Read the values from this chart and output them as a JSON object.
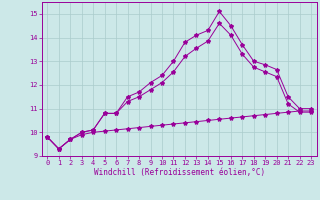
{
  "xlabel": "Windchill (Refroidissement éolien,°C)",
  "x": [
    0,
    1,
    2,
    3,
    4,
    5,
    6,
    7,
    8,
    9,
    10,
    11,
    12,
    13,
    14,
    15,
    16,
    17,
    18,
    19,
    20,
    21,
    22,
    23
  ],
  "line1": [
    9.8,
    9.3,
    9.7,
    10.0,
    10.1,
    10.8,
    10.8,
    11.5,
    11.7,
    12.1,
    12.4,
    13.0,
    13.8,
    14.1,
    14.3,
    15.1,
    14.5,
    13.7,
    13.0,
    12.85,
    12.65,
    11.5,
    11.0,
    11.0
  ],
  "line2": [
    9.8,
    9.3,
    9.7,
    10.0,
    10.1,
    10.8,
    10.8,
    11.3,
    11.5,
    11.8,
    12.1,
    12.55,
    13.2,
    13.55,
    13.85,
    14.6,
    14.1,
    13.3,
    12.75,
    12.55,
    12.35,
    11.2,
    10.85,
    10.85
  ],
  "line3": [
    9.8,
    9.3,
    9.7,
    9.9,
    10.0,
    10.05,
    10.1,
    10.15,
    10.2,
    10.25,
    10.3,
    10.35,
    10.4,
    10.45,
    10.5,
    10.55,
    10.6,
    10.65,
    10.7,
    10.75,
    10.8,
    10.85,
    10.9,
    10.9
  ],
  "line_color": "#990099",
  "bg_color": "#cce8e8",
  "grid_color": "#aacccc",
  "xlim": [
    -0.5,
    23.5
  ],
  "ylim": [
    9.0,
    15.5
  ],
  "yticks": [
    9,
    10,
    11,
    12,
    13,
    14,
    15
  ],
  "xticks": [
    0,
    1,
    2,
    3,
    4,
    5,
    6,
    7,
    8,
    9,
    10,
    11,
    12,
    13,
    14,
    15,
    16,
    17,
    18,
    19,
    20,
    21,
    22,
    23
  ]
}
